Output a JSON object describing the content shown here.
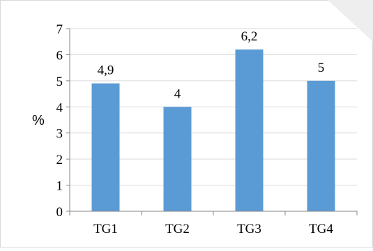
{
  "colors": {
    "bar": "#5b9bd5",
    "grid": "#d9d9d9",
    "axis": "#868686",
    "frame": "#d9d9d9"
  },
  "chart_data": {
    "type": "bar",
    "title": "",
    "xlabel": "",
    "ylabel": "%",
    "categories": [
      "TG1",
      "TG2",
      "TG3",
      "TG4"
    ],
    "values": [
      4.9,
      4,
      6.2,
      5
    ],
    "data_labels": [
      "4,9",
      "4",
      "6,2",
      "5"
    ],
    "ylim": [
      0,
      7
    ],
    "yticks": [
      0,
      1,
      2,
      3,
      4,
      5,
      6,
      7
    ],
    "grid": true,
    "legend": "none"
  }
}
